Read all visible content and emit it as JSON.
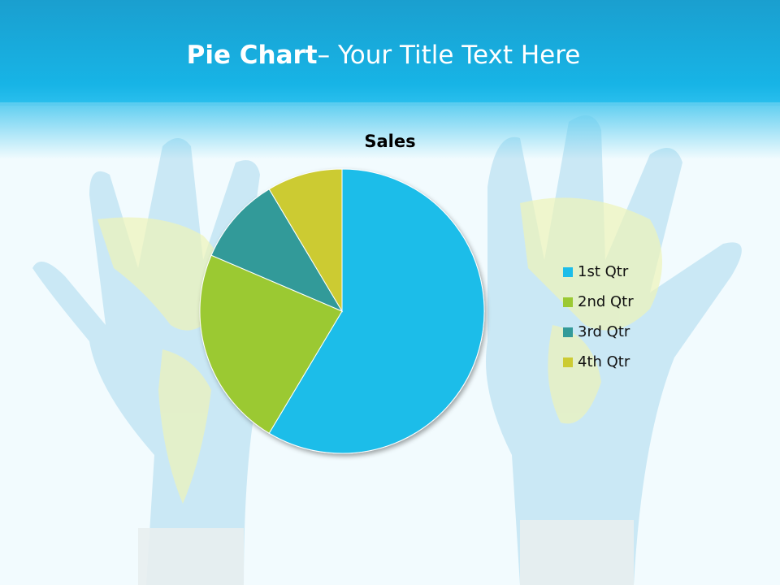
{
  "slide": {
    "title_bold": "Pie Chart",
    "title_rest": "– Your Title Text Here"
  },
  "colors": {
    "header": "#17b4e6",
    "series": [
      "#1cbde9",
      "#9bc933",
      "#339a99",
      "#cccb33"
    ]
  },
  "chart_data": {
    "type": "pie",
    "title": "Sales",
    "categories": [
      "1st Qtr",
      "2nd Qtr",
      "3rd Qtr",
      "4th Qtr"
    ],
    "values": [
      8.2,
      3.2,
      1.4,
      1.2
    ],
    "start_angle_deg": 0,
    "direction": "clockwise",
    "legend": "right"
  }
}
